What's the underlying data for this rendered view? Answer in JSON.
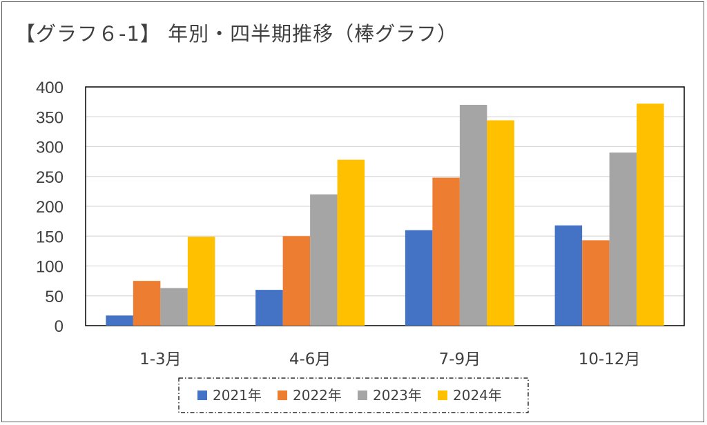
{
  "page": {
    "title": "【グラフ６-1】 年別・四半期推移（棒グラフ）"
  },
  "chart_data": {
    "type": "bar",
    "title": "【グラフ６-1】 年別・四半期推移（棒グラフ）",
    "categories": [
      "1-3月",
      "4-6月",
      "7-9月",
      "10-12月"
    ],
    "series": [
      {
        "name": "2021年",
        "color": "#4472C4",
        "values": [
          17,
          60,
          160,
          168
        ]
      },
      {
        "name": "2022年",
        "color": "#ED7D31",
        "values": [
          75,
          150,
          248,
          143
        ]
      },
      {
        "name": "2023年",
        "color": "#A5A5A5",
        "values": [
          63,
          220,
          370,
          290
        ]
      },
      {
        "name": "2024年",
        "color": "#FFC000",
        "values": [
          149,
          278,
          344,
          372
        ]
      }
    ],
    "ylim": [
      0,
      400
    ],
    "yticks": [
      0,
      50,
      100,
      150,
      200,
      250,
      300,
      350,
      400
    ],
    "grid": true,
    "legend_position": "bottom"
  }
}
